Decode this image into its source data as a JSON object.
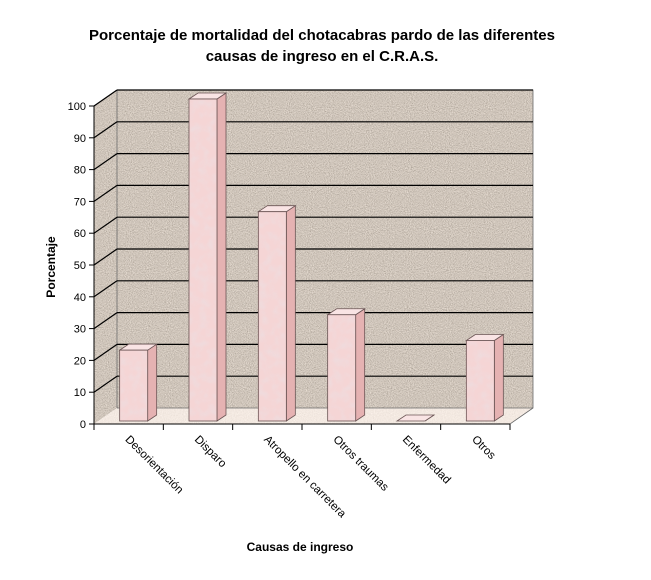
{
  "chart_data": {
    "type": "bar",
    "title_lines": [
      "Porcentaje de mortalidad del chotacabras pardo de las diferentes",
      "causas de ingreso en el C.R.A.S."
    ],
    "xlabel": "Causas de ingreso",
    "ylabel": "Porcentaje",
    "categories": [
      "Desorientación",
      "Disparo",
      "Atropello en carretera",
      "Otros traumas",
      "Enfermedad",
      "Otros"
    ],
    "values": [
      22,
      100,
      65,
      33,
      0,
      25
    ],
    "ylim": [
      0,
      100
    ],
    "yticks": [
      0,
      10,
      20,
      30,
      40,
      50,
      60,
      70,
      80,
      90,
      100
    ],
    "grid": true,
    "legend": "none",
    "colors": {
      "bar_front": "#f5d5d5",
      "bar_side": "#e5b2b2",
      "bar_top": "#f9e4e4",
      "bar_edge": "#6b5555",
      "wall_texture": "#8e857c",
      "floor": "#e9dcd0",
      "gridline": "#000000"
    }
  }
}
